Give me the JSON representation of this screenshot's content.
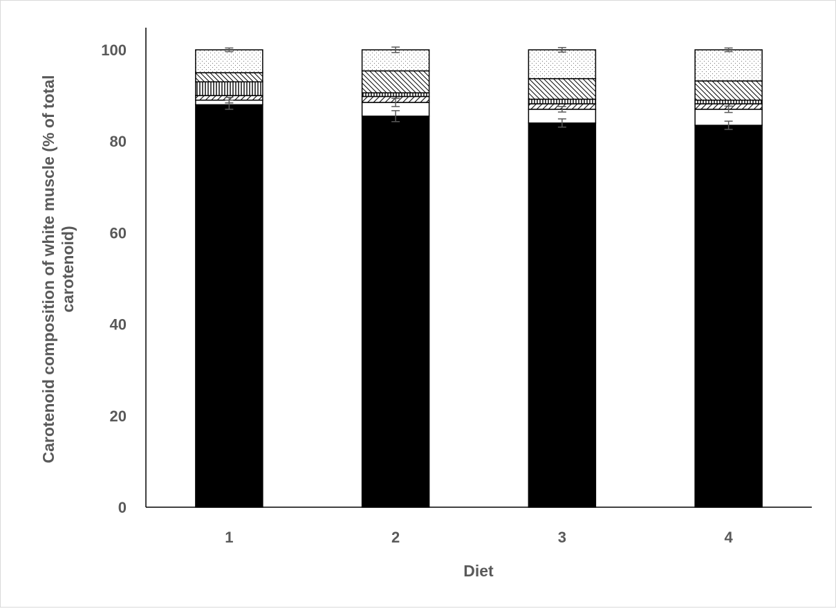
{
  "chart_data": {
    "type": "bar",
    "stacked": true,
    "title": "",
    "xlabel": "Diet",
    "ylabel_lines": [
      "Carotenoid composition of white muscle (% of total",
      "carotenoid)"
    ],
    "categories": [
      "1",
      "2",
      "3",
      "4"
    ],
    "ylim": [
      0,
      100
    ],
    "yticks": [
      "0",
      "20",
      "40",
      "60",
      "80",
      "100"
    ],
    "grid": false,
    "legend": "none",
    "series": [
      {
        "fill": "solid-black",
        "values": [
          88.0,
          85.5,
          84.0,
          83.5
        ],
        "error": [
          1.0,
          1.2,
          0.9,
          0.9
        ]
      },
      {
        "fill": "white",
        "values": [
          1.0,
          3.0,
          3.0,
          3.5
        ],
        "error": [
          0.6,
          0.9,
          0.6,
          0.7
        ]
      },
      {
        "fill": "diagonal-hatch",
        "values": [
          1.0,
          1.3,
          1.2,
          1.2
        ],
        "error": [
          0.0,
          0.0,
          0.0,
          0.0
        ]
      },
      {
        "fill": "fine-stripes",
        "values": [
          3.0,
          0.8,
          1.0,
          0.8
        ],
        "error": [
          0.0,
          0.0,
          0.0,
          0.0
        ]
      },
      {
        "fill": "cross-hatch",
        "values": [
          2.0,
          4.8,
          4.5,
          4.2
        ],
        "error": [
          0.0,
          0.0,
          0.0,
          0.0
        ]
      },
      {
        "fill": "dotted",
        "values": [
          5.0,
          4.6,
          6.3,
          6.8
        ],
        "error": [
          0.4,
          0.6,
          0.5,
          0.4
        ]
      }
    ]
  }
}
